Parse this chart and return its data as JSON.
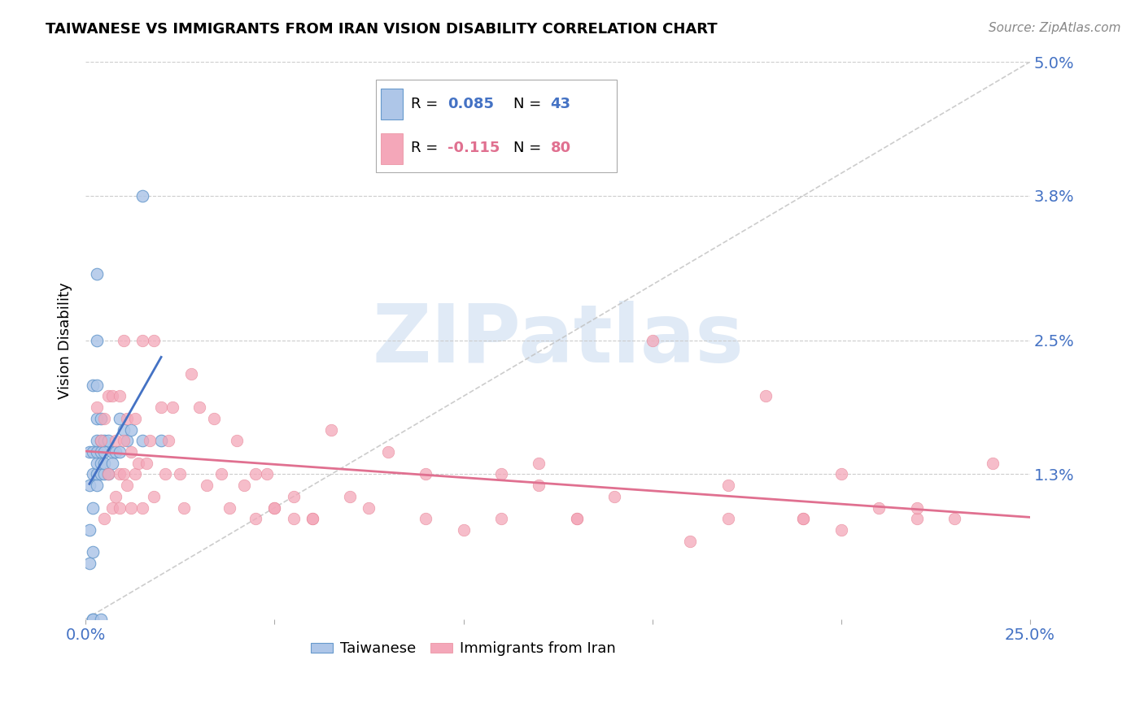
{
  "title": "TAIWANESE VS IMMIGRANTS FROM IRAN VISION DISABILITY CORRELATION CHART",
  "source": "Source: ZipAtlas.com",
  "ylabel": "Vision Disability",
  "xlim": [
    0.0,
    0.25
  ],
  "ylim": [
    0.0,
    0.05
  ],
  "ytick_vals": [
    0.0,
    0.013,
    0.025,
    0.038,
    0.05
  ],
  "ytick_labels": [
    "",
    "1.3%",
    "2.5%",
    "3.8%",
    "5.0%"
  ],
  "xtick_vals": [
    0.0,
    0.05,
    0.1,
    0.15,
    0.2,
    0.25
  ],
  "xtick_labels": [
    "0.0%",
    "",
    "",
    "",
    "",
    "25.0%"
  ],
  "taiwanese_color": "#aec6e8",
  "taiwanese_edge": "#6699cc",
  "iran_color": "#f4a7b9",
  "iran_edge": "#e8899a",
  "trendline_tw_color": "#4472c4",
  "trendline_ir_color": "#e07090",
  "diagonal_color": "#c0c0c0",
  "watermark": "ZIPatlas",
  "watermark_color": "#ccddf0",
  "legend_r_tw": "0.085",
  "legend_n_tw": "43",
  "legend_r_ir": "-0.115",
  "legend_n_ir": "80",
  "legend_color_tw": "#4472c4",
  "legend_color_ir": "#e07090",
  "taiwanese_x": [
    0.001,
    0.001,
    0.001,
    0.001,
    0.002,
    0.002,
    0.002,
    0.002,
    0.002,
    0.002,
    0.003,
    0.003,
    0.003,
    0.003,
    0.003,
    0.003,
    0.003,
    0.004,
    0.004,
    0.004,
    0.004,
    0.004,
    0.005,
    0.005,
    0.005,
    0.005,
    0.006,
    0.006,
    0.007,
    0.007,
    0.008,
    0.009,
    0.009,
    0.01,
    0.011,
    0.012,
    0.015,
    0.015,
    0.02,
    0.002,
    0.003,
    0.003,
    0.004
  ],
  "taiwanese_y": [
    0.005,
    0.008,
    0.012,
    0.015,
    0.0,
    0.0,
    0.006,
    0.01,
    0.013,
    0.015,
    0.012,
    0.013,
    0.014,
    0.015,
    0.016,
    0.018,
    0.031,
    0.013,
    0.014,
    0.015,
    0.016,
    0.018,
    0.013,
    0.014,
    0.015,
    0.016,
    0.013,
    0.016,
    0.014,
    0.015,
    0.015,
    0.015,
    0.018,
    0.017,
    0.016,
    0.017,
    0.038,
    0.016,
    0.016,
    0.021,
    0.021,
    0.025,
    0.0
  ],
  "iran_x": [
    0.003,
    0.004,
    0.005,
    0.005,
    0.006,
    0.006,
    0.007,
    0.007,
    0.008,
    0.008,
    0.009,
    0.009,
    0.009,
    0.01,
    0.01,
    0.01,
    0.011,
    0.011,
    0.012,
    0.012,
    0.013,
    0.013,
    0.014,
    0.015,
    0.015,
    0.016,
    0.017,
    0.018,
    0.018,
    0.02,
    0.021,
    0.022,
    0.023,
    0.025,
    0.026,
    0.028,
    0.03,
    0.032,
    0.034,
    0.036,
    0.038,
    0.04,
    0.042,
    0.045,
    0.048,
    0.05,
    0.055,
    0.06,
    0.065,
    0.07,
    0.075,
    0.08,
    0.09,
    0.1,
    0.11,
    0.12,
    0.13,
    0.14,
    0.16,
    0.18,
    0.2,
    0.22,
    0.15,
    0.17,
    0.19,
    0.21,
    0.23,
    0.24,
    0.09,
    0.11,
    0.12,
    0.13,
    0.17,
    0.19,
    0.2,
    0.22,
    0.045,
    0.05,
    0.055,
    0.06
  ],
  "iran_y": [
    0.019,
    0.016,
    0.009,
    0.018,
    0.013,
    0.02,
    0.01,
    0.02,
    0.011,
    0.016,
    0.01,
    0.013,
    0.02,
    0.013,
    0.016,
    0.025,
    0.012,
    0.018,
    0.01,
    0.015,
    0.013,
    0.018,
    0.014,
    0.01,
    0.025,
    0.014,
    0.016,
    0.011,
    0.025,
    0.019,
    0.013,
    0.016,
    0.019,
    0.013,
    0.01,
    0.022,
    0.019,
    0.012,
    0.018,
    0.013,
    0.01,
    0.016,
    0.012,
    0.009,
    0.013,
    0.01,
    0.011,
    0.009,
    0.017,
    0.011,
    0.01,
    0.015,
    0.013,
    0.008,
    0.009,
    0.014,
    0.009,
    0.011,
    0.007,
    0.02,
    0.013,
    0.009,
    0.025,
    0.012,
    0.009,
    0.01,
    0.009,
    0.014,
    0.009,
    0.013,
    0.012,
    0.009,
    0.009,
    0.009,
    0.008,
    0.01,
    0.013,
    0.01,
    0.009,
    0.009
  ]
}
